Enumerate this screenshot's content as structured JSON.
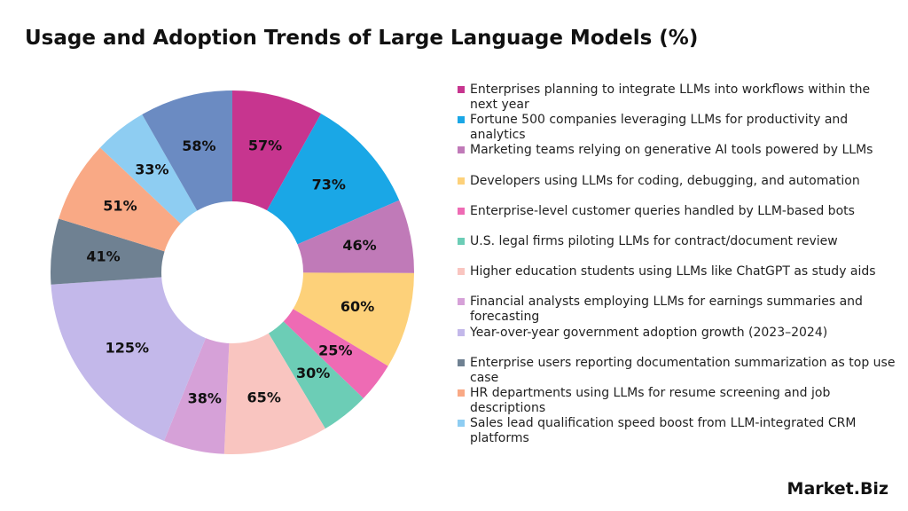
{
  "chart_data": {
    "type": "donut",
    "title": "Usage and Adoption Trends of Large Language Models (%)",
    "categories": [
      "Enterprises planning to integrate LLMs into workflows within the next year",
      "Fortune 500 companies leveraging LLMs for productivity and analytics",
      "Marketing teams relying on generative AI tools powered by LLMs",
      "Developers using LLMs for coding, debugging, and automation",
      "Enterprise-level customer queries handled by LLM-based bots",
      "U.S. legal firms piloting LLMs for contract/document review",
      "Higher education students using LLMs like ChatGPT as study aids",
      "Financial analysts employing LLMs for earnings summaries and forecasting",
      "Year-over-year government adoption growth (2023–2024)",
      "Enterprise users reporting documentation summarization as top use case",
      "HR departments using LLMs for resume screening and job descriptions",
      "Sales lead qualification speed boost from LLM-integrated CRM platforms",
      null
    ],
    "values": [
      57,
      73,
      46,
      60,
      25,
      30,
      65,
      38,
      125,
      41,
      51,
      33,
      58
    ],
    "value_labels": [
      "57%",
      "73%",
      "46%",
      "60%",
      "25%",
      "30%",
      "65%",
      "38%",
      "125%",
      "41%",
      "51%",
      "33%",
      "58%"
    ],
    "colors": [
      "#c7358f",
      "#1aa7e6",
      "#c07ab8",
      "#fdd17a",
      "#ee6bb4",
      "#6ccdb6",
      "#f9c5c0",
      "#d6a1d8",
      "#c3b8ea",
      "#6f8192",
      "#f9a985",
      "#8ecdf2",
      "#6b8bc2"
    ],
    "legend": "right"
  },
  "brand": "Market.Biz"
}
